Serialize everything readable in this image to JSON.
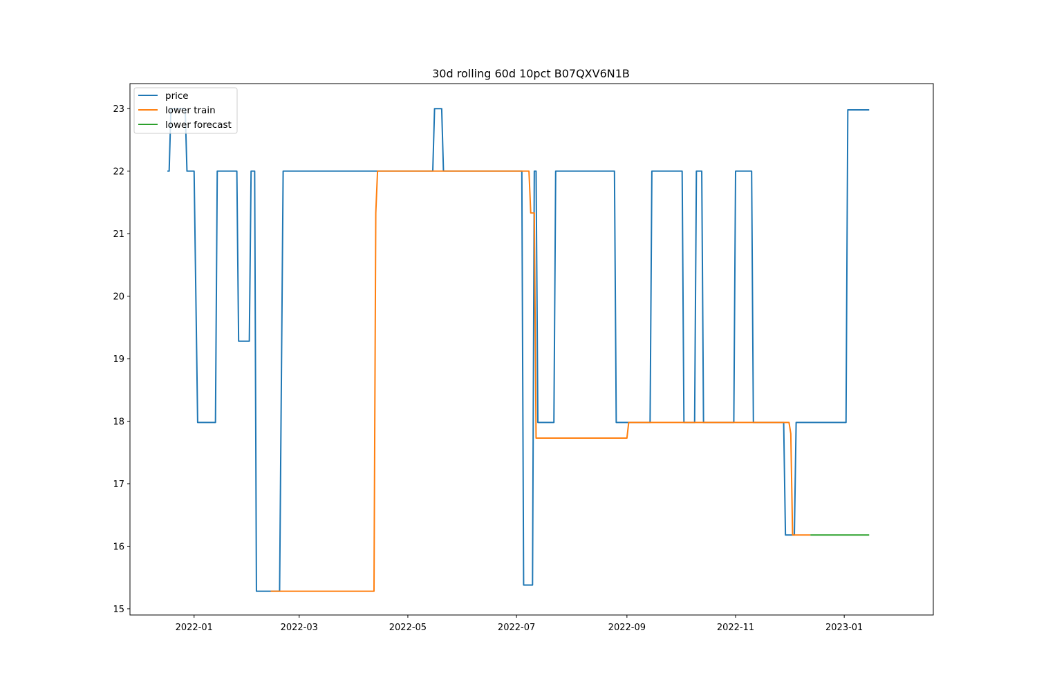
{
  "chart_data": {
    "type": "line",
    "title": "30d rolling 60d 10pct B07QXV6N1B",
    "xlabel": "",
    "ylabel": "",
    "x_ticks": [
      "2022-01",
      "2022-03",
      "2022-05",
      "2022-07",
      "2022-09",
      "2022-11",
      "2023-01"
    ],
    "y_ticks": [
      15,
      16,
      17,
      18,
      19,
      20,
      21,
      22,
      23
    ],
    "xlim": [
      "2021-11-26",
      "2023-02-20"
    ],
    "ylim": [
      14.9,
      23.4
    ],
    "grid": false,
    "legend_position": "upper left",
    "series": [
      {
        "name": "price",
        "color": "#1f77b4",
        "points": [
          [
            "2021-12-17",
            22
          ],
          [
            "2021-12-18",
            22
          ],
          [
            "2021-12-19",
            23
          ],
          [
            "2021-12-27",
            23
          ],
          [
            "2021-12-28",
            22
          ],
          [
            "2022-01-01",
            22
          ],
          [
            "2022-01-03",
            17.98
          ],
          [
            "2022-01-13",
            17.98
          ],
          [
            "2022-01-14",
            22
          ],
          [
            "2022-01-25",
            22
          ],
          [
            "2022-01-26",
            19.28
          ],
          [
            "2022-02-01",
            19.28
          ],
          [
            "2022-02-02",
            22
          ],
          [
            "2022-02-04",
            22
          ],
          [
            "2022-02-05",
            15.28
          ],
          [
            "2022-02-18",
            15.28
          ],
          [
            "2022-02-20",
            22
          ],
          [
            "2022-05-15",
            22
          ],
          [
            "2022-05-16",
            23
          ],
          [
            "2022-05-20",
            23
          ],
          [
            "2022-05-21",
            22
          ],
          [
            "2022-07-04",
            22
          ],
          [
            "2022-07-05",
            15.38
          ],
          [
            "2022-07-10",
            15.38
          ],
          [
            "2022-07-11",
            22
          ],
          [
            "2022-07-12",
            22
          ],
          [
            "2022-07-13",
            17.98
          ],
          [
            "2022-07-22",
            17.98
          ],
          [
            "2022-07-23",
            22
          ],
          [
            "2022-08-25",
            22
          ],
          [
            "2022-08-26",
            17.98
          ],
          [
            "2022-09-14",
            17.98
          ],
          [
            "2022-09-15",
            22
          ],
          [
            "2022-10-02",
            22
          ],
          [
            "2022-10-03",
            17.98
          ],
          [
            "2022-10-09",
            17.98
          ],
          [
            "2022-10-10",
            22
          ],
          [
            "2022-10-13",
            22
          ],
          [
            "2022-10-14",
            17.98
          ],
          [
            "2022-10-31",
            17.98
          ],
          [
            "2022-11-01",
            22
          ],
          [
            "2022-11-10",
            22
          ],
          [
            "2022-11-11",
            17.98
          ],
          [
            "2022-11-28",
            17.98
          ],
          [
            "2022-11-29",
            16.18
          ],
          [
            "2022-12-04",
            16.18
          ],
          [
            "2022-12-05",
            17.98
          ],
          [
            "2023-01-02",
            17.98
          ],
          [
            "2023-01-03",
            22.98
          ],
          [
            "2023-01-15",
            22.98
          ]
        ]
      },
      {
        "name": "lower train",
        "color": "#ff7f0e",
        "points": [
          [
            "2022-02-13",
            15.28
          ],
          [
            "2022-04-12",
            15.28
          ],
          [
            "2022-04-13",
            21.33
          ],
          [
            "2022-04-14",
            22
          ],
          [
            "2022-07-08",
            22
          ],
          [
            "2022-07-09",
            21.33
          ],
          [
            "2022-07-10",
            21.33
          ],
          [
            "2022-07-11",
            21.33
          ],
          [
            "2022-07-12",
            17.73
          ],
          [
            "2022-09-01",
            17.73
          ],
          [
            "2022-09-02",
            17.98
          ],
          [
            "2022-12-01",
            17.98
          ],
          [
            "2022-12-02",
            17.8
          ],
          [
            "2022-12-03",
            16.18
          ],
          [
            "2022-12-13",
            16.18
          ]
        ]
      },
      {
        "name": "lower forecast",
        "color": "#2ca02c",
        "points": [
          [
            "2022-12-13",
            16.18
          ],
          [
            "2023-01-15",
            16.18
          ]
        ]
      }
    ]
  }
}
